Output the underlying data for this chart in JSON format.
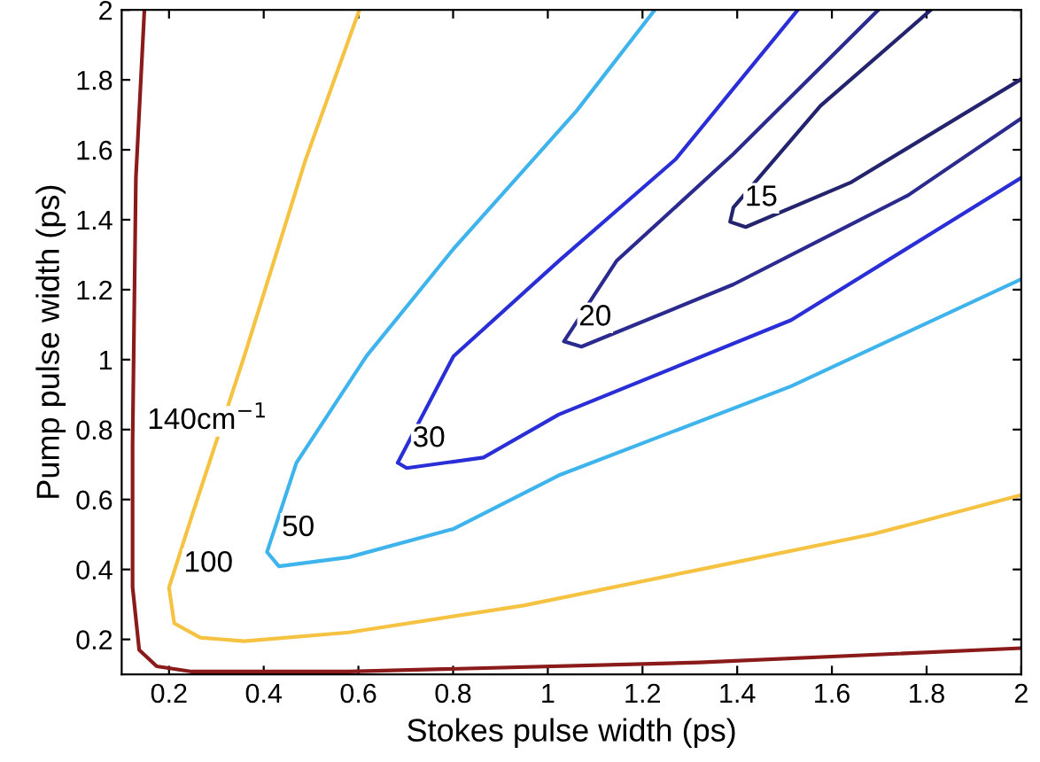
{
  "chart_data": {
    "type": "line",
    "xlabel": "Stokes pulse width (ps)",
    "ylabel": "Pump pulse width (ps)",
    "xlim": [
      0.1,
      2
    ],
    "ylim": [
      0.1,
      2
    ],
    "xticks": [
      0.2,
      0.4,
      0.6,
      0.8,
      1,
      1.2,
      1.4,
      1.6,
      1.8,
      2
    ],
    "yticks": [
      0.2,
      0.4,
      0.6,
      0.8,
      1,
      1.2,
      1.4,
      1.6,
      1.8,
      2
    ],
    "grid": false,
    "marker": "none",
    "line_style": "solid",
    "series": [
      {
        "name": "140cm$^{−1}$",
        "color": "#8b1a1a",
        "x": [
          0.148,
          0.13,
          0.123,
          0.123,
          0.137,
          0.174,
          0.248,
          0.58,
          1.32,
          2.0
        ],
        "values": [
          2.0,
          1.52,
          0.756,
          0.35,
          0.17,
          0.123,
          0.108,
          0.108,
          0.134,
          0.175
        ]
      },
      {
        "name": "100",
        "color": "#f5c242",
        "x": [
          0.602,
          0.488,
          0.359,
          0.248,
          0.2,
          0.211,
          0.266,
          0.359,
          0.58,
          0.949,
          1.318,
          1.687,
          2.0
        ],
        "values": [
          2.0,
          1.57,
          1.01,
          0.552,
          0.348,
          0.246,
          0.205,
          0.195,
          0.22,
          0.297,
          0.399,
          0.501,
          0.613
        ]
      },
      {
        "name": "50",
        "color": "#3fb4ec",
        "x": [
          1.226,
          1.06,
          0.801,
          0.617,
          0.469,
          0.407,
          0.432,
          0.58,
          0.801,
          1.023,
          1.514,
          2.0
        ],
        "values": [
          2.0,
          1.71,
          1.317,
          1.01,
          0.705,
          0.45,
          0.409,
          0.435,
          0.516,
          0.669,
          0.924,
          1.23
        ]
      },
      {
        "name": "30",
        "color": "#2a2ed6",
        "x": [
          1.528,
          1.27,
          1.023,
          0.801,
          0.683,
          0.702,
          0.864,
          1.023,
          1.514,
          2.0
        ],
        "values": [
          2.0,
          1.573,
          1.282,
          1.01,
          0.705,
          0.69,
          0.72,
          0.843,
          1.113,
          1.52
        ]
      },
      {
        "name": "20",
        "color": "#2b2b8f",
        "x": [
          1.698,
          1.392,
          1.145,
          1.034,
          1.071,
          1.392,
          1.761,
          2.0
        ],
        "values": [
          2.0,
          1.588,
          1.282,
          1.052,
          1.037,
          1.215,
          1.47,
          1.69
        ]
      },
      {
        "name": "15",
        "color": "#23236e",
        "x": [
          1.809,
          1.576,
          1.392,
          1.385,
          1.418,
          1.639,
          2.0
        ],
        "values": [
          2.0,
          1.726,
          1.435,
          1.394,
          1.379,
          1.506,
          1.802
        ]
      }
    ]
  }
}
